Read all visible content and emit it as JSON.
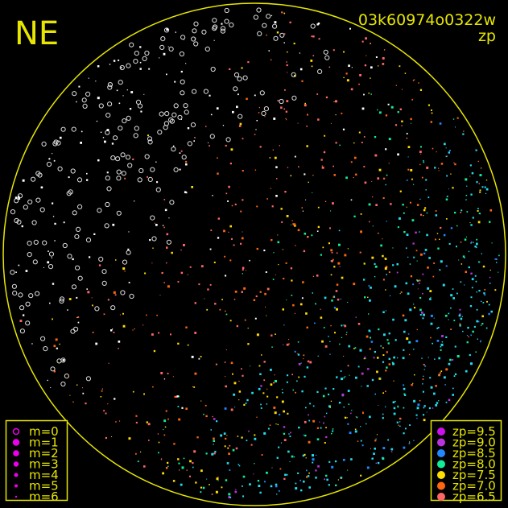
{
  "direction_label": "NE",
  "frame_id": "03k60974o0322w",
  "mode_label": "zp",
  "colors": {
    "frame": "#e6e600",
    "background": "#000000",
    "unmatched_star": "#ffffff"
  },
  "magnitude_legend": [
    {
      "label": "m=0",
      "marker": "open-circle"
    },
    {
      "label": "m=1",
      "marker": "dot"
    },
    {
      "label": "m=2",
      "marker": "dot"
    },
    {
      "label": "m=3",
      "marker": "dot"
    },
    {
      "label": "m=4",
      "marker": "dot"
    },
    {
      "label": "m=5",
      "marker": "dot"
    },
    {
      "label": "m=6",
      "marker": "dot"
    }
  ],
  "zp_legend": [
    {
      "label": "zp=9.5",
      "color": "#cc11ee"
    },
    {
      "label": "zp=9.0",
      "color": "#bb33dd"
    },
    {
      "label": "zp=8.5",
      "color": "#2288ff"
    },
    {
      "label": "zp=8.0",
      "color": "#11ee99"
    },
    {
      "label": "zp=7.5",
      "color": "#ffdd00"
    },
    {
      "label": "zp=7.0",
      "color": "#ff6611"
    },
    {
      "label": "zp=6.5",
      "color": "#ff6666"
    }
  ]
}
